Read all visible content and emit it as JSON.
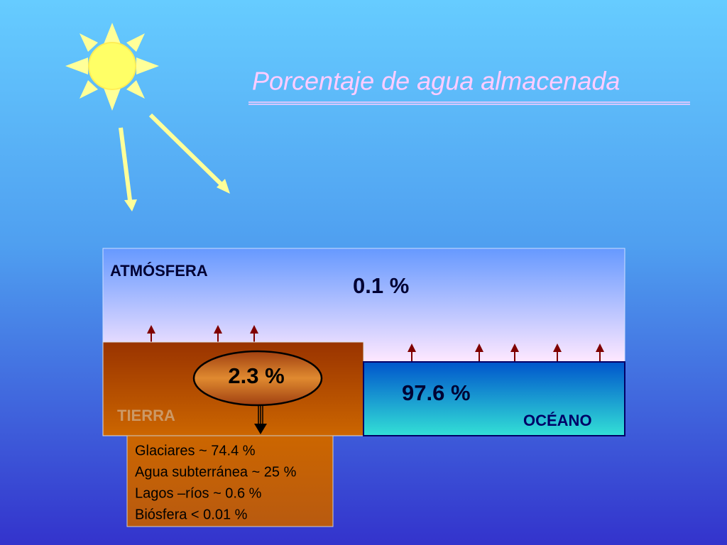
{
  "title": "Porcentaje de agua almacenada",
  "atmosphere": {
    "label": "ATMÓSFERA",
    "value": "0.1 %"
  },
  "land": {
    "label": "TIERRA",
    "value": "2.3 %"
  },
  "ocean": {
    "label": "OCÉANO",
    "value": "97.6 %"
  },
  "breakdown": [
    "Glaciares ~ 74.4 %",
    "Agua subterránea ~ 25 %",
    "Lagos –ríos ~ 0.6 %",
    "Biósfera < 0.01 %"
  ]
}
